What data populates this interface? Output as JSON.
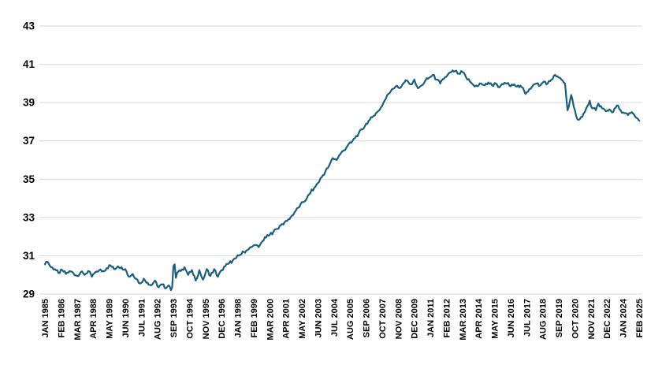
{
  "chart_data": {
    "type": "line",
    "title": "",
    "xlabel": "",
    "ylabel": "",
    "legend": "none",
    "grid": "horizontal",
    "background_color": "#ffffff",
    "gridline_color": "#d9d9d9",
    "line_color": "#1b5e7e",
    "ylim": [
      29,
      43
    ],
    "yticks": [
      29,
      31,
      33,
      35,
      37,
      39,
      41,
      43
    ],
    "x_range": {
      "start_label": "JAN 1985",
      "end_label": "FEB 2025",
      "n_months": 482
    },
    "x_tick_labels": [
      "JAN 1985",
      "FEB 1986",
      "MAR 1987",
      "APR 1988",
      "MAY 1989",
      "JUN 1990",
      "JUL 1991",
      "AUG 1992",
      "SEP 1993",
      "OCT 1994",
      "NOV 1995",
      "DEC 1996",
      "JAN 1998",
      "FEB 1999",
      "MAR 2000",
      "APR 2001",
      "MAY 2002",
      "JUN 2003",
      "JUL 2004",
      "AUG 2005",
      "SEP 2006",
      "OCT 2007",
      "NOV 2008",
      "DEC 2009",
      "JAN 2011",
      "FEB 2012",
      "MAR 2013",
      "APR 2014",
      "MAY 2015",
      "JUN 2016",
      "JUL 2017",
      "AUG 2018",
      "SEP 2019",
      "OCT 2020",
      "NOV 2021",
      "DEC 2022",
      "JAN 2024",
      "FEB 2025"
    ],
    "x_tick_step_months": 13,
    "series": [
      {
        "name": "value",
        "sampling": "monthly values estimated from plot; anchors as [month_index_from_JAN1985, value]",
        "anchors": [
          [
            0,
            30.55
          ],
          [
            2,
            30.68
          ],
          [
            5,
            30.4
          ],
          [
            8,
            30.3
          ],
          [
            11,
            30.1
          ],
          [
            14,
            30.25
          ],
          [
            17,
            30.05
          ],
          [
            20,
            30.2
          ],
          [
            23,
            30.1
          ],
          [
            26,
            29.95
          ],
          [
            29,
            30.15
          ],
          [
            32,
            30.0
          ],
          [
            35,
            30.2
          ],
          [
            38,
            29.9
          ],
          [
            41,
            30.15
          ],
          [
            44,
            30.25
          ],
          [
            47,
            30.2
          ],
          [
            50,
            30.35
          ],
          [
            53,
            30.5
          ],
          [
            56,
            30.3
          ],
          [
            59,
            30.45
          ],
          [
            62,
            30.4
          ],
          [
            65,
            30.3
          ],
          [
            68,
            29.9
          ],
          [
            71,
            30.05
          ],
          [
            74,
            29.8
          ],
          [
            77,
            29.55
          ],
          [
            80,
            29.8
          ],
          [
            83,
            29.6
          ],
          [
            86,
            29.45
          ],
          [
            89,
            29.7
          ],
          [
            92,
            29.35
          ],
          [
            95,
            29.5
          ],
          [
            98,
            29.3
          ],
          [
            100,
            29.45
          ],
          [
            102,
            29.2
          ],
          [
            103,
            29.35
          ],
          [
            104,
            30.45
          ],
          [
            105,
            30.55
          ],
          [
            106,
            29.85
          ],
          [
            107,
            30.1
          ],
          [
            110,
            30.2
          ],
          [
            113,
            30.4
          ],
          [
            116,
            30.0
          ],
          [
            119,
            30.25
          ],
          [
            122,
            29.7
          ],
          [
            125,
            30.25
          ],
          [
            128,
            29.75
          ],
          [
            131,
            30.3
          ],
          [
            134,
            29.95
          ],
          [
            137,
            30.3
          ],
          [
            140,
            29.9
          ],
          [
            143,
            30.25
          ],
          [
            146,
            30.45
          ],
          [
            149,
            30.6
          ],
          [
            152,
            30.75
          ],
          [
            155,
            30.9
          ],
          [
            158,
            31.05
          ],
          [
            161,
            31.2
          ],
          [
            164,
            31.3
          ],
          [
            167,
            31.45
          ],
          [
            170,
            31.55
          ],
          [
            173,
            31.45
          ],
          [
            176,
            31.75
          ],
          [
            179,
            31.95
          ],
          [
            182,
            32.1
          ],
          [
            185,
            32.25
          ],
          [
            188,
            32.4
          ],
          [
            191,
            32.6
          ],
          [
            194,
            32.75
          ],
          [
            197,
            32.9
          ],
          [
            200,
            33.1
          ],
          [
            203,
            33.35
          ],
          [
            206,
            33.55
          ],
          [
            209,
            33.8
          ],
          [
            212,
            34.0
          ],
          [
            215,
            34.3
          ],
          [
            218,
            34.55
          ],
          [
            221,
            34.8
          ],
          [
            224,
            35.1
          ],
          [
            227,
            35.4
          ],
          [
            230,
            35.7
          ],
          [
            233,
            36.1
          ],
          [
            236,
            36.0
          ],
          [
            239,
            36.3
          ],
          [
            242,
            36.5
          ],
          [
            245,
            36.75
          ],
          [
            248,
            36.9
          ],
          [
            251,
            37.15
          ],
          [
            254,
            37.4
          ],
          [
            257,
            37.6
          ],
          [
            260,
            37.9
          ],
          [
            263,
            38.1
          ],
          [
            266,
            38.3
          ],
          [
            269,
            38.5
          ],
          [
            272,
            38.75
          ],
          [
            275,
            39.1
          ],
          [
            278,
            39.45
          ],
          [
            281,
            39.7
          ],
          [
            284,
            39.85
          ],
          [
            287,
            39.75
          ],
          [
            290,
            40.0
          ],
          [
            293,
            40.15
          ],
          [
            296,
            39.95
          ],
          [
            299,
            40.2
          ],
          [
            302,
            39.75
          ],
          [
            305,
            39.9
          ],
          [
            308,
            40.15
          ],
          [
            311,
            40.3
          ],
          [
            314,
            40.45
          ],
          [
            317,
            40.2
          ],
          [
            320,
            40.0
          ],
          [
            323,
            40.25
          ],
          [
            326,
            40.45
          ],
          [
            329,
            40.6
          ],
          [
            332,
            40.65
          ],
          [
            335,
            40.5
          ],
          [
            338,
            40.6
          ],
          [
            341,
            40.3
          ],
          [
            344,
            40.1
          ],
          [
            347,
            39.9
          ],
          [
            350,
            39.85
          ],
          [
            353,
            40.0
          ],
          [
            356,
            39.9
          ],
          [
            359,
            40.05
          ],
          [
            362,
            39.9
          ],
          [
            365,
            40.0
          ],
          [
            368,
            39.8
          ],
          [
            371,
            39.95
          ],
          [
            374,
            40.0
          ],
          [
            377,
            39.85
          ],
          [
            380,
            39.95
          ],
          [
            383,
            39.9
          ],
          [
            386,
            39.8
          ],
          [
            389,
            39.45
          ],
          [
            392,
            39.7
          ],
          [
            395,
            39.9
          ],
          [
            398,
            40.0
          ],
          [
            401,
            39.9
          ],
          [
            404,
            40.1
          ],
          [
            407,
            40.0
          ],
          [
            410,
            40.2
          ],
          [
            413,
            40.45
          ],
          [
            416,
            40.3
          ],
          [
            419,
            40.15
          ],
          [
            421,
            40.0
          ],
          [
            422,
            39.3
          ],
          [
            423,
            38.6
          ],
          [
            425,
            39.1
          ],
          [
            426,
            39.4
          ],
          [
            428,
            38.8
          ],
          [
            430,
            38.3
          ],
          [
            432,
            38.1
          ],
          [
            434,
            38.25
          ],
          [
            437,
            38.5
          ],
          [
            440,
            38.9
          ],
          [
            441,
            39.1
          ],
          [
            443,
            38.7
          ],
          [
            446,
            38.6
          ],
          [
            448,
            38.95
          ],
          [
            451,
            38.7
          ],
          [
            454,
            38.55
          ],
          [
            457,
            38.65
          ],
          [
            460,
            38.5
          ],
          [
            463,
            38.85
          ],
          [
            466,
            38.6
          ],
          [
            469,
            38.45
          ],
          [
            472,
            38.35
          ],
          [
            475,
            38.5
          ],
          [
            478,
            38.25
          ],
          [
            480,
            38.15
          ],
          [
            481,
            38.05
          ]
        ]
      }
    ]
  }
}
